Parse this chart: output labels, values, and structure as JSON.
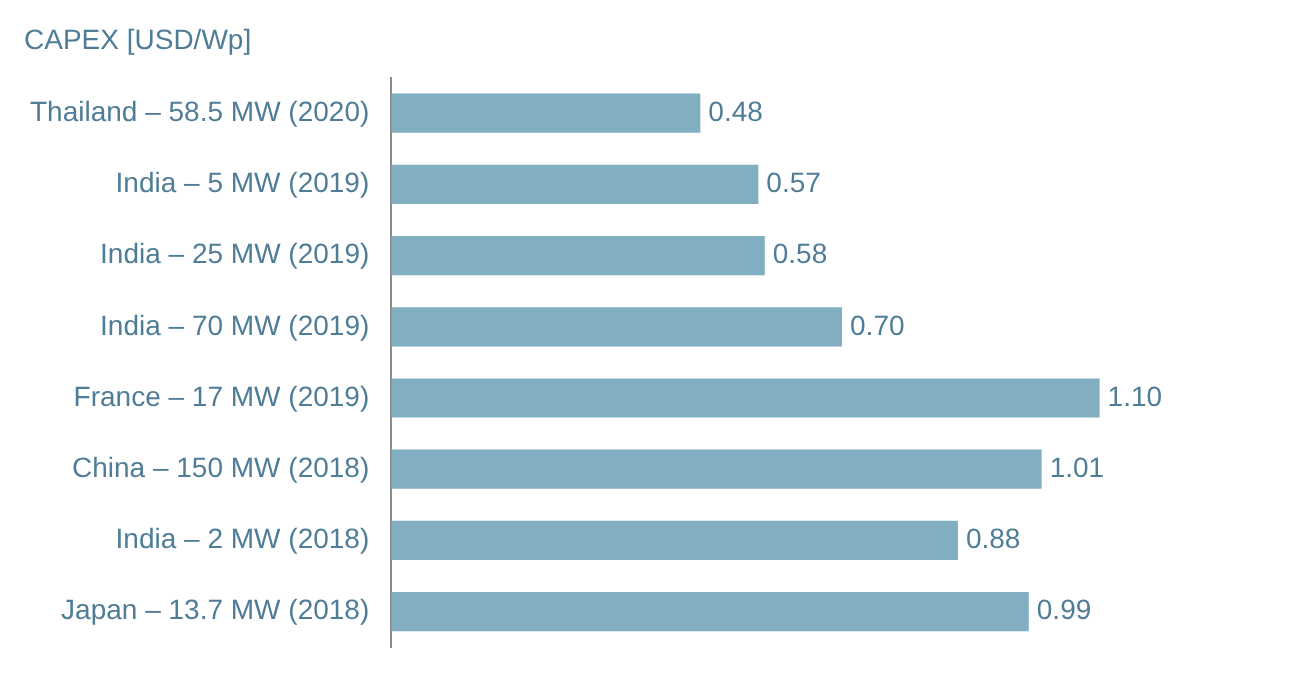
{
  "chart_data": {
    "type": "bar",
    "orientation": "horizontal",
    "title": "CAPEX [USD/Wp]",
    "categories": [
      "Thailand – 58.5 MW (2020)",
      "India – 5 MW (2019)",
      "India – 25 MW (2019)",
      "India – 70 MW (2019)",
      "France – 17 MW (2019)",
      "China – 150 MW (2018)",
      "India – 2 MW (2018)",
      "Japan – 13.7 MW (2018)"
    ],
    "values": [
      0.48,
      0.57,
      0.58,
      0.7,
      1.1,
      1.01,
      0.88,
      0.99
    ],
    "value_labels": [
      "0.48",
      "0.57",
      "0.58",
      "0.70",
      "1.10",
      "1.01",
      "0.88",
      "0.99"
    ],
    "color": "#82aec2",
    "grid": false,
    "legend": false
  }
}
